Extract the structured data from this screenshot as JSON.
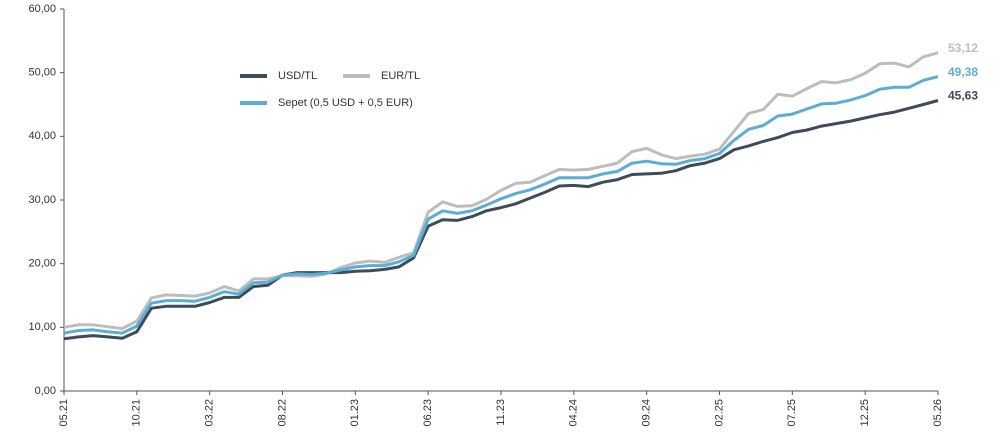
{
  "chart_data": {
    "type": "line",
    "categories": [
      "05.21",
      null,
      null,
      null,
      null,
      "10.21",
      null,
      null,
      null,
      null,
      "03.22",
      null,
      null,
      null,
      null,
      "08.22",
      null,
      null,
      null,
      null,
      "01.23",
      null,
      null,
      null,
      null,
      "06.23",
      null,
      null,
      null,
      null,
      "11.23",
      null,
      null,
      null,
      null,
      "04.24",
      null,
      null,
      null,
      null,
      "09.24",
      null,
      null,
      null,
      null,
      "02.25",
      null,
      null,
      null,
      null,
      "07.25",
      null,
      null,
      null,
      null,
      "12.25",
      null,
      null,
      null,
      null,
      "05.26"
    ],
    "series": [
      {
        "name": "USD/TL",
        "color": "#3d4b5a",
        "values": [
          8.2,
          8.5,
          8.7,
          8.5,
          8.3,
          9.3,
          13.0,
          13.3,
          13.3,
          13.3,
          13.9,
          14.7,
          14.7,
          16.4,
          16.6,
          18.2,
          18.6,
          18.6,
          18.6,
          18.6,
          18.8,
          18.9,
          19.1,
          19.5,
          20.9,
          25.9,
          26.9,
          26.8,
          27.4,
          28.3,
          28.8,
          29.4,
          30.3,
          31.2,
          32.2,
          32.3,
          32.1,
          32.8,
          33.2,
          34.0,
          34.1,
          34.2,
          34.6,
          35.4,
          35.8,
          36.5,
          37.9,
          38.5,
          39.2,
          39.8,
          40.6,
          41.0,
          41.6,
          42.0,
          42.4,
          42.9,
          43.4,
          43.8,
          44.4,
          45.0,
          45.63
        ],
        "value_labels": [
          null,
          null,
          null,
          null,
          null,
          null,
          null,
          null,
          null,
          null,
          null,
          null,
          null,
          null,
          null,
          null,
          null,
          null,
          null,
          null,
          null,
          null,
          null,
          null,
          null,
          null,
          null,
          null,
          null,
          null,
          null,
          null,
          null,
          null,
          null,
          null,
          null,
          null,
          null,
          null,
          null,
          null,
          null,
          null,
          null,
          null,
          null,
          null,
          null,
          null,
          null,
          null,
          null,
          null,
          null,
          null,
          null,
          null,
          null,
          null,
          "45,63"
        ]
      },
      {
        "name": "EUR/TL",
        "color": "#bdbdbd",
        "values": [
          10.0,
          10.4,
          10.4,
          10.1,
          9.8,
          11.0,
          14.6,
          15.1,
          15.0,
          14.9,
          15.4,
          16.4,
          15.7,
          17.6,
          17.6,
          18.1,
          18.1,
          18.0,
          18.4,
          19.4,
          20.1,
          20.4,
          20.2,
          21.0,
          21.7,
          28.1,
          29.7,
          29.0,
          29.1,
          30.1,
          31.5,
          32.6,
          32.8,
          33.8,
          34.8,
          34.7,
          34.8,
          35.3,
          35.8,
          37.6,
          38.1,
          37.1,
          36.5,
          36.9,
          37.2,
          38.0,
          40.8,
          43.6,
          44.2,
          46.6,
          46.3,
          47.5,
          48.6,
          48.4,
          48.9,
          49.9,
          51.4,
          51.5,
          50.9,
          52.5,
          53.12
        ],
        "value_labels": [
          null,
          null,
          null,
          null,
          null,
          null,
          null,
          null,
          null,
          null,
          null,
          null,
          null,
          null,
          null,
          null,
          null,
          null,
          null,
          null,
          null,
          null,
          null,
          null,
          null,
          null,
          null,
          null,
          null,
          null,
          null,
          null,
          null,
          null,
          null,
          null,
          null,
          null,
          null,
          null,
          null,
          null,
          null,
          null,
          null,
          null,
          null,
          null,
          null,
          null,
          null,
          null,
          null,
          null,
          null,
          null,
          null,
          null,
          null,
          null,
          "53,12"
        ]
      },
      {
        "name": "Sepet (0,5 USD + 0,5 EUR)",
        "color": "#5aaed6",
        "values": [
          9.1,
          9.5,
          9.6,
          9.3,
          9.1,
          10.2,
          13.8,
          14.2,
          14.2,
          14.1,
          14.7,
          15.6,
          15.2,
          17.0,
          17.1,
          18.2,
          18.4,
          18.3,
          18.5,
          19.0,
          19.5,
          19.7,
          19.7,
          20.3,
          21.3,
          27.0,
          28.3,
          27.9,
          28.3,
          29.2,
          30.2,
          31.0,
          31.6,
          32.5,
          33.5,
          33.5,
          33.5,
          34.1,
          34.5,
          35.8,
          36.1,
          35.7,
          35.6,
          36.2,
          36.5,
          37.3,
          39.4,
          41.1,
          41.7,
          43.2,
          43.5,
          44.3,
          45.1,
          45.2,
          45.7,
          46.4,
          47.4,
          47.7,
          47.7,
          48.8,
          49.38
        ],
        "value_labels": [
          null,
          null,
          null,
          null,
          null,
          null,
          null,
          null,
          null,
          null,
          null,
          null,
          null,
          null,
          null,
          null,
          null,
          null,
          null,
          null,
          null,
          null,
          null,
          null,
          null,
          null,
          null,
          null,
          null,
          null,
          null,
          null,
          null,
          null,
          null,
          null,
          null,
          null,
          null,
          null,
          null,
          null,
          null,
          null,
          null,
          null,
          null,
          null,
          null,
          null,
          null,
          null,
          null,
          null,
          null,
          null,
          null,
          null,
          null,
          null,
          "49,38"
        ]
      }
    ],
    "ylim": [
      0,
      60
    ],
    "yticks": [
      {
        "value": 0,
        "label": "0,00"
      },
      {
        "value": 10,
        "label": "10,00"
      },
      {
        "value": 20,
        "label": "20,00"
      },
      {
        "value": 30,
        "label": "30,00"
      },
      {
        "value": 40,
        "label": "40,00"
      },
      {
        "value": 50,
        "label": "50,00"
      },
      {
        "value": 60,
        "label": "60,00"
      }
    ],
    "grid": false
  }
}
